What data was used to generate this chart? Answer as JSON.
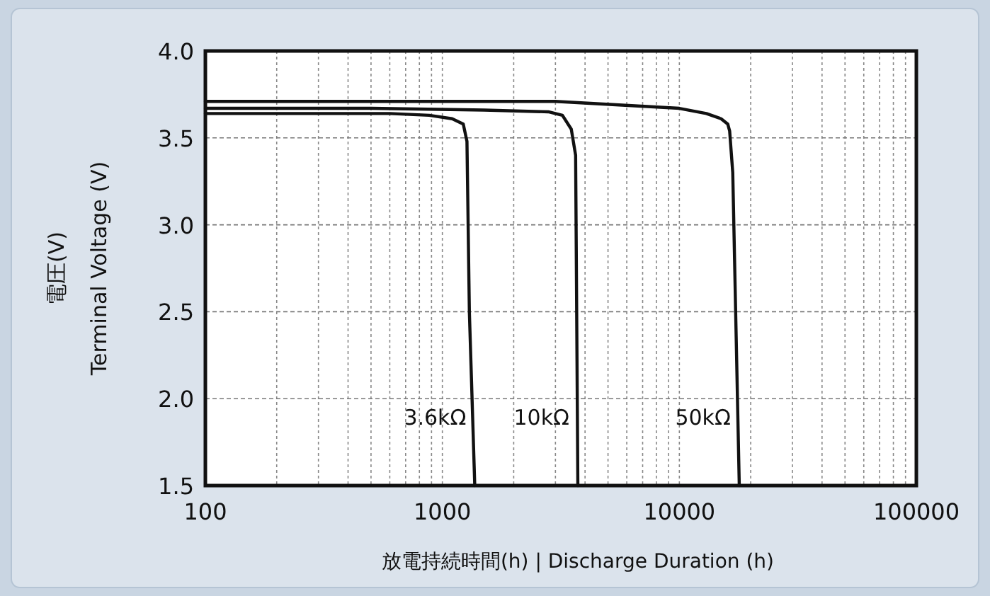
{
  "chart_data": {
    "type": "line",
    "xlabel": "放電持続時間(h) | Discharge Duration (h)",
    "ylabel": "電圧(V)\nTerminal Voltage (V)",
    "log": "x",
    "xlim": [
      100,
      100000
    ],
    "xticks": [
      100,
      1000,
      10000,
      100000
    ],
    "ylim": [
      1.5,
      4.0
    ],
    "yticks": [
      {
        "value": 1.5,
        "label": "1.5"
      },
      {
        "value": 2.0,
        "label": "2.0"
      },
      {
        "value": 2.5,
        "label": "2.5"
      },
      {
        "value": 3.0,
        "label": "3.0"
      },
      {
        "value": 3.5,
        "label": "3.5"
      },
      {
        "value": 4.0,
        "label": "4.0"
      }
    ],
    "grid": true,
    "legend": false,
    "marker": "none",
    "line_style": "solid",
    "series": [
      {
        "name": "3.6kΩ",
        "color": "#111111",
        "x": [
          100,
          300,
          600,
          880,
          1100,
          1225,
          1270,
          1300,
          1370
        ],
        "values": [
          3.64,
          3.64,
          3.64,
          3.63,
          3.61,
          3.58,
          3.48,
          2.5,
          1.5
        ]
      },
      {
        "name": "10kΩ",
        "color": "#111111",
        "x": [
          100,
          500,
          1500,
          2800,
          3210,
          3500,
          3650,
          3730
        ],
        "values": [
          3.67,
          3.67,
          3.66,
          3.65,
          3.63,
          3.55,
          3.4,
          1.5
        ]
      },
      {
        "name": "50kΩ",
        "color": "#111111",
        "x": [
          100,
          1000,
          3000,
          10000,
          13000,
          15000,
          16000,
          16300,
          16800,
          17900
        ],
        "values": [
          3.71,
          3.71,
          3.71,
          3.67,
          3.64,
          3.61,
          3.58,
          3.54,
          3.3,
          1.5
        ]
      }
    ]
  }
}
